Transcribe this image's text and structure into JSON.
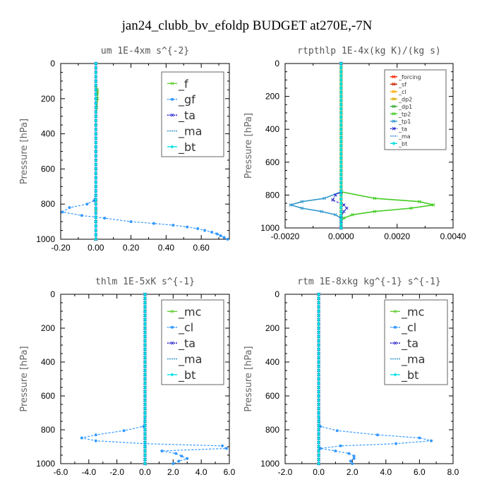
{
  "title": "jan24_clubb_bv_efoldp  BUDGET at270E,-7N",
  "chart_data": [
    {
      "type": "line",
      "title": "um   1E-4xm s^{-2}",
      "ylabel": "Pressure [hPa]",
      "xlim": [
        -0.2,
        0.76
      ],
      "ylim": [
        0,
        1000
      ],
      "y_inverted": true,
      "xticks": [
        "-0.20",
        "0.00",
        "0.20",
        "0.40",
        "0.60"
      ],
      "xtick_values": [
        -0.2,
        0.0,
        0.2,
        0.4,
        0.6
      ],
      "yticks": [
        "0",
        "200",
        "400",
        "600",
        "800",
        "1000"
      ],
      "legend": "top-right",
      "legend_style": "large",
      "series": [
        {
          "name": "_f",
          "color": "#66cc33",
          "dashed": false,
          "marker": "x",
          "zigzag": 0,
          "y": [
            0,
            50,
            100,
            130,
            150,
            170,
            200,
            250,
            300,
            350,
            400,
            500,
            600,
            700,
            780,
            830,
            900,
            1000
          ],
          "x": [
            0,
            0,
            0,
            0,
            0.01,
            0.01,
            0.01,
            0.005,
            0,
            0,
            0,
            0,
            0,
            0,
            0,
            0,
            0,
            0
          ]
        },
        {
          "name": "_gf",
          "color": "#3399ff",
          "dashed": true,
          "marker": "dot",
          "zigzag": 0,
          "y": [
            0,
            100,
            200,
            300,
            400,
            500,
            600,
            700,
            780,
            800,
            820,
            845,
            865,
            880,
            900,
            910,
            920,
            930,
            940,
            950,
            960,
            970,
            980,
            990,
            1000
          ],
          "x": [
            0,
            0,
            0,
            0,
            0,
            0,
            0,
            0,
            -0.01,
            -0.05,
            -0.15,
            -0.19,
            -0.08,
            0.05,
            0.2,
            0.33,
            0.44,
            0.52,
            0.58,
            0.62,
            0.66,
            0.69,
            0.71,
            0.73,
            0.75
          ]
        },
        {
          "name": "_ta",
          "color": "#2222cc",
          "dashed": true,
          "marker": "x",
          "zigzag": 0,
          "y": [
            0,
            1000
          ],
          "x": [
            0,
            0
          ]
        },
        {
          "name": "_ma",
          "color": "#2b8fc8",
          "dashed": true,
          "marker": "none",
          "zigzag": 0,
          "y": [
            0,
            1000
          ],
          "x": [
            0,
            0
          ]
        },
        {
          "name": "_bt",
          "color": "#00e0e0",
          "dashed": false,
          "marker": "diamond",
          "zigzag": 0,
          "y": [
            0,
            1000
          ],
          "x": [
            0,
            0
          ]
        }
      ]
    },
    {
      "type": "line",
      "title": "rtpthlp   1E-4x(kg K)/(kg s)",
      "ylabel": "Pressure [hPa]",
      "xlim": [
        -0.002,
        0.004
      ],
      "ylim": [
        0,
        1000
      ],
      "y_inverted": true,
      "xticks": [
        "-0.0020",
        "0.0000",
        "0.0020",
        "0.0040"
      ],
      "xtick_values": [
        -0.002,
        0.0,
        0.002,
        0.004
      ],
      "yticks": [
        "0",
        "200",
        "400",
        "600",
        "800",
        "1000"
      ],
      "legend": "top-right",
      "legend_style": "small",
      "series": [
        {
          "name": "_forcing",
          "color": "#ff2200",
          "dashed": false,
          "marker": "x",
          "zigzag": 0,
          "y": [
            0,
            1000
          ],
          "x": [
            0,
            0
          ]
        },
        {
          "name": "_sf",
          "color": "#cc2200",
          "dashed": false,
          "marker": "x",
          "zigzag": 0,
          "y": [
            0,
            1000
          ],
          "x": [
            0,
            0
          ]
        },
        {
          "name": "_cl",
          "color": "#ffaa00",
          "dashed": false,
          "marker": "x",
          "zigzag": 0,
          "y": [
            0,
            1000
          ],
          "x": [
            0,
            0
          ]
        },
        {
          "name": "_dp2",
          "color": "#ddaa00",
          "dashed": false,
          "marker": "x",
          "zigzag": 0,
          "y": [
            0,
            1000
          ],
          "x": [
            0,
            0
          ]
        },
        {
          "name": "_dp1",
          "color": "#33aa33",
          "dashed": false,
          "marker": "x",
          "zigzag": 0,
          "y": [
            0,
            1000
          ],
          "x": [
            0,
            0
          ]
        },
        {
          "name": "_tp2",
          "color": "#44cc22",
          "dashed": false,
          "marker": "x",
          "zigzag": 0,
          "y": [
            0,
            700,
            780,
            820,
            840,
            860,
            880,
            900,
            920,
            940,
            960,
            980,
            1000
          ],
          "x": [
            0,
            0,
            0,
            0.0012,
            0.0028,
            0.0033,
            0.0025,
            0.0012,
            0.0004,
            0.0001,
            0,
            0,
            0
          ]
        },
        {
          "name": "_tp1",
          "color": "#3399cc",
          "dashed": false,
          "marker": "x",
          "zigzag": 0,
          "y": [
            0,
            700,
            780,
            820,
            840,
            860,
            880,
            900,
            920,
            940,
            960,
            980,
            1000
          ],
          "x": [
            0,
            0,
            0,
            -0.0006,
            -0.0014,
            -0.0018,
            -0.0014,
            -0.0007,
            -0.0002,
            0,
            0,
            0,
            0
          ]
        },
        {
          "name": "_ta",
          "color": "#2222cc",
          "dashed": true,
          "marker": "x",
          "zigzag": 0,
          "y": [
            0,
            780,
            800,
            830,
            860,
            880,
            900,
            930,
            960,
            1000
          ],
          "x": [
            0,
            0,
            -0.0002,
            -0.0003,
            0.0001,
            0.0002,
            0.0001,
            0,
            0,
            0
          ]
        },
        {
          "name": "_ma",
          "color": "#2b8fc8",
          "dashed": true,
          "marker": "none",
          "zigzag": 0,
          "y": [
            0,
            1000
          ],
          "x": [
            0,
            0
          ]
        },
        {
          "name": "_bt",
          "color": "#00e0e0",
          "dashed": false,
          "marker": "diamond",
          "zigzag": 0,
          "y": [
            0,
            1000
          ],
          "x": [
            0,
            0
          ]
        }
      ]
    },
    {
      "type": "line",
      "title": "thlm   1E-5xK s^{-1}",
      "ylabel": "Pressure [hPa]",
      "xlim": [
        -6,
        6
      ],
      "ylim": [
        0,
        1000
      ],
      "y_inverted": true,
      "xticks": [
        "-6.0",
        "-4.0",
        "-2.0",
        "0.0",
        "2.0",
        "4.0",
        "6.0"
      ],
      "xtick_values": [
        -6,
        -4,
        -2,
        0,
        2,
        4,
        6
      ],
      "yticks": [
        "0",
        "200",
        "400",
        "600",
        "800",
        "1000"
      ],
      "legend": "top-right",
      "legend_style": "large",
      "series": [
        {
          "name": "_mc",
          "color": "#66cc33",
          "dashed": false,
          "marker": "x",
          "zigzag": 0,
          "y": [
            0,
            1000
          ],
          "x": [
            0,
            0
          ]
        },
        {
          "name": "_cl",
          "color": "#3399ff",
          "dashed": true,
          "marker": "dot",
          "zigzag": 0,
          "y": [
            0,
            100,
            200,
            300,
            400,
            500,
            600,
            700,
            780,
            805,
            830,
            848,
            865,
            882,
            895,
            910,
            925,
            940,
            955,
            970,
            985,
            1000
          ],
          "x": [
            0,
            0,
            0,
            0,
            0,
            0,
            0,
            0,
            -0.1,
            -1.5,
            -3.5,
            -4.5,
            -3.5,
            0,
            5.5,
            5.8,
            1.2,
            2.2,
            2.6,
            3.0,
            2.4,
            2.0
          ]
        },
        {
          "name": "_ta",
          "color": "#2222cc",
          "dashed": true,
          "marker": "x",
          "zigzag": 0,
          "y": [
            0,
            1000
          ],
          "x": [
            0,
            0
          ]
        },
        {
          "name": "_ma",
          "color": "#2b8fc8",
          "dashed": true,
          "marker": "none",
          "zigzag": 0,
          "y": [
            0,
            1000
          ],
          "x": [
            0,
            0
          ]
        },
        {
          "name": "_bt",
          "color": "#00e0e0",
          "dashed": false,
          "marker": "diamond",
          "zigzag": 0,
          "y": [
            0,
            1000
          ],
          "x": [
            0,
            0
          ]
        }
      ]
    },
    {
      "type": "line",
      "title": "rtm   1E-8xkg kg^{-1} s^{-1}",
      "ylabel": "Pressure [hPa]",
      "xlim": [
        -2,
        8
      ],
      "ylim": [
        0,
        1000
      ],
      "y_inverted": true,
      "xticks": [
        "-2.0",
        "0.0",
        "2.0",
        "4.0",
        "6.0",
        "8.0"
      ],
      "xtick_values": [
        -2,
        0,
        2,
        4,
        6,
        8
      ],
      "yticks": [
        "0",
        "200",
        "400",
        "600",
        "800",
        "1000"
      ],
      "legend": "top-right",
      "legend_style": "large",
      "series": [
        {
          "name": "_mc",
          "color": "#66cc33",
          "dashed": false,
          "marker": "x",
          "zigzag": 0,
          "y": [
            0,
            1000
          ],
          "x": [
            0,
            0
          ]
        },
        {
          "name": "_cl",
          "color": "#3399ff",
          "dashed": true,
          "marker": "dot",
          "zigzag": 0,
          "y": [
            0,
            100,
            200,
            300,
            400,
            500,
            600,
            700,
            780,
            805,
            830,
            848,
            865,
            882,
            895,
            910,
            925,
            940,
            955,
            970,
            985,
            1000
          ],
          "x": [
            0,
            0,
            0,
            0,
            0,
            0,
            0,
            0,
            0.1,
            1.1,
            3.5,
            6.0,
            6.7,
            4.6,
            1.3,
            0.1,
            1.0,
            1.8,
            2.1,
            2.1,
            1.9,
            2.0
          ]
        },
        {
          "name": "_ta",
          "color": "#2222cc",
          "dashed": true,
          "marker": "x",
          "zigzag": 0,
          "y": [
            0,
            1000
          ],
          "x": [
            0,
            0
          ]
        },
        {
          "name": "_ma",
          "color": "#2b8fc8",
          "dashed": true,
          "marker": "none",
          "zigzag": 0,
          "y": [
            0,
            1000
          ],
          "x": [
            0,
            0
          ]
        },
        {
          "name": "_bt",
          "color": "#00e0e0",
          "dashed": false,
          "marker": "diamond",
          "zigzag": 0,
          "y": [
            0,
            1000
          ],
          "x": [
            0,
            0
          ]
        }
      ]
    }
  ]
}
